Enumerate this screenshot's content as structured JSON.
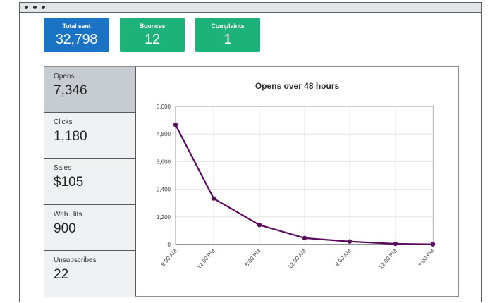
{
  "window": {
    "controls": [
      "dot",
      "dot",
      "dot"
    ]
  },
  "tiles": [
    {
      "label": "Total sent",
      "value": "32,798",
      "color": "#1a73c4"
    },
    {
      "label": "Bounces",
      "value": "12",
      "color": "#1db27a"
    },
    {
      "label": "Complaints",
      "value": "1",
      "color": "#1db27a"
    }
  ],
  "sidebar": {
    "items": [
      {
        "label": "Opens",
        "value": "7,346",
        "selected": true
      },
      {
        "label": "Clicks",
        "value": "1,180",
        "selected": false
      },
      {
        "label": "Sales",
        "value": "$105",
        "selected": false
      },
      {
        "label": "Web Hits",
        "value": "900",
        "selected": false
      },
      {
        "label": "Unsubscribes",
        "value": "22",
        "selected": false
      }
    ]
  },
  "chart": {
    "title": "Opens over 48 hours",
    "line_color": "#5a0b5c"
  },
  "chart_data": {
    "type": "line",
    "title": "Opens over 48 hours",
    "xlabel": "",
    "ylabel": "",
    "categories": [
      "8:00 AM",
      "12:00 PM",
      "8:00 PM",
      "12:00 AM",
      "8:00 AM",
      "12:00 PM",
      "8:00 PM"
    ],
    "series": [
      {
        "name": "Opens",
        "values": [
          5200,
          2000,
          850,
          280,
          130,
          30,
          10
        ]
      }
    ],
    "ylim": [
      0,
      6000
    ],
    "yticks": [
      "0",
      "1,200",
      "2,400",
      "3,600",
      "4,800",
      "6,000"
    ],
    "grid": true,
    "legend": "none"
  }
}
